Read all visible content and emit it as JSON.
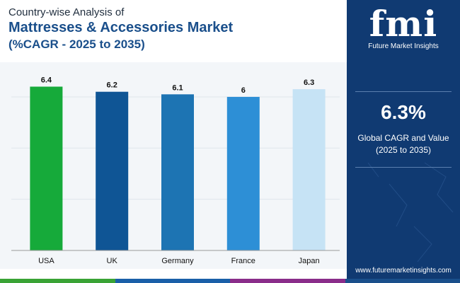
{
  "header": {
    "line1": "Country-wise Analysis of",
    "line2": "Mattresses & Accessories Market",
    "line3": "(%CAGR - 2025 to 2035)"
  },
  "sidebar": {
    "logo_mark": "fmi",
    "logo_text": "Future Market Insights",
    "cagr_value": "6.3%",
    "cagr_label_line1": "Global CAGR and Value",
    "cagr_label_line2": "(2025 to 2035)",
    "url": "www.futuremarketinsights.com"
  },
  "colors": {
    "sidebar_bg": "#103a72",
    "title": "#1a4f8b",
    "strip": [
      "#3aa335",
      "#1a5fa8",
      "#8a2d8a",
      "#1a4f8b"
    ]
  },
  "chart_data": {
    "type": "bar",
    "categories": [
      "USA",
      "UK",
      "Germany",
      "France",
      "Japan"
    ],
    "values": [
      6.4,
      6.2,
      6.1,
      6,
      6.3
    ],
    "value_labels": [
      "6.4",
      "6.2",
      "6.1",
      "6",
      "6.3"
    ],
    "colors": [
      "#16aa3a",
      "#0f5595",
      "#1d74b3",
      "#2d8fd6",
      "#c6e3f5"
    ],
    "ylim": [
      0,
      6.8
    ],
    "grid": true,
    "legend": "none"
  }
}
